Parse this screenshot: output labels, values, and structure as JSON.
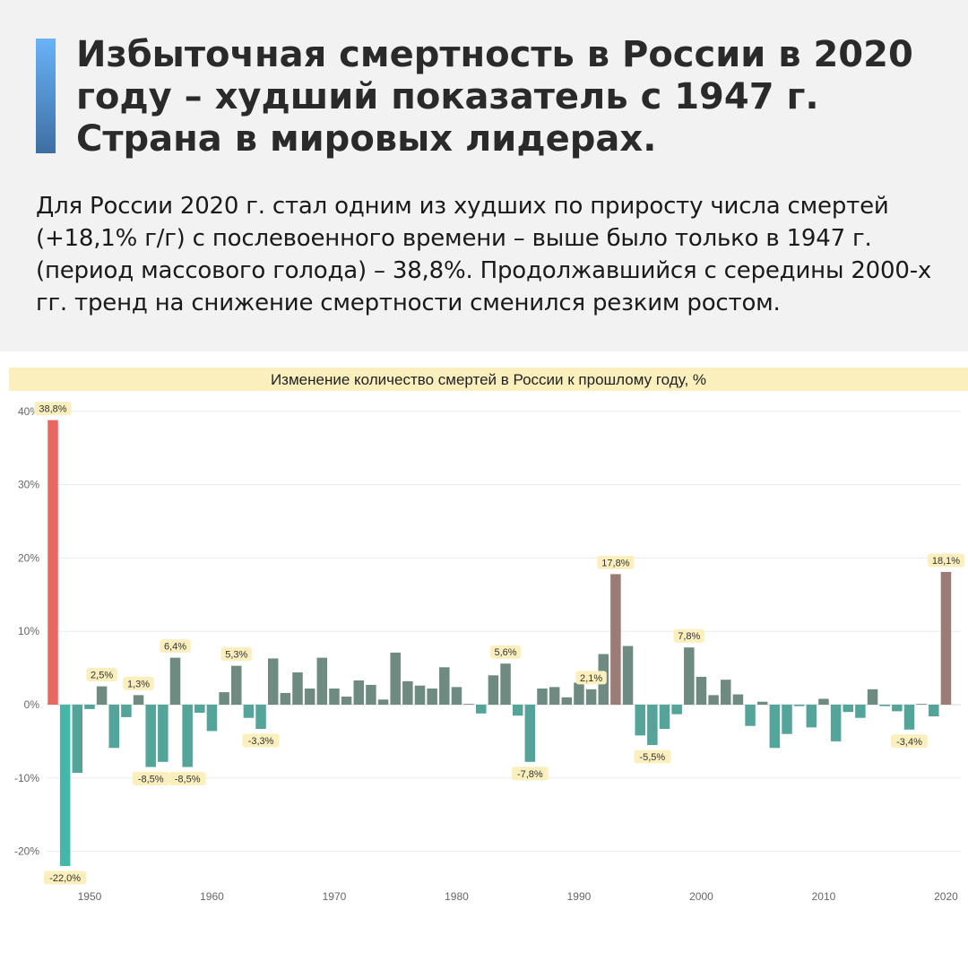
{
  "header": {
    "title": "Избыточная смертность в России в 2020 году – худший показатель с 1947 г. Страна в мировых лидерах.",
    "lead": "Для России 2020 г. стал одним из худших по приросту числа смертей (+18,1% г/г) с послевоенного времени – выше было только в 1947 г. (период массового голода) – 38,8%. Продолжавшийся с середины 2000-х гг. тренд на снижение смертности сменился резким ростом."
  },
  "colors": {
    "header_bg": "#f2f2f2",
    "accent_top": "#6ab2f7",
    "accent_bottom": "#3e6fa1",
    "banner_bg": "#fbefbe",
    "label_bg": "#fbefbe",
    "bar_max": "#e8685f",
    "bar_high": "#9b7b76",
    "bar_pos": "#6f8a80",
    "bar_neg": "#54a499",
    "bar_min": "#43b8a8"
  },
  "chart_data": {
    "type": "bar",
    "title": "Изменение количество смертей в России к прошлому году, %",
    "xlabel": "",
    "ylabel": "",
    "ylim": [
      -24,
      41
    ],
    "yticks": [
      "40%",
      "30%",
      "20%",
      "10%",
      "0%",
      "-10%",
      "-20%"
    ],
    "ytick_values": [
      40,
      30,
      20,
      10,
      0,
      -10,
      -20
    ],
    "xticks": [
      1950,
      1960,
      1970,
      1980,
      1990,
      2000,
      2010,
      2020
    ],
    "grid": true,
    "x": [
      1947,
      1948,
      1949,
      1950,
      1951,
      1952,
      1953,
      1954,
      1955,
      1956,
      1957,
      1958,
      1959,
      1960,
      1961,
      1962,
      1963,
      1964,
      1965,
      1966,
      1967,
      1968,
      1969,
      1970,
      1971,
      1972,
      1973,
      1974,
      1975,
      1976,
      1977,
      1978,
      1979,
      1980,
      1981,
      1982,
      1983,
      1984,
      1985,
      1986,
      1987,
      1988,
      1989,
      1990,
      1991,
      1992,
      1993,
      1994,
      1995,
      1996,
      1997,
      1998,
      1999,
      2000,
      2001,
      2002,
      2003,
      2004,
      2005,
      2006,
      2007,
      2008,
      2009,
      2010,
      2011,
      2012,
      2013,
      2014,
      2015,
      2016,
      2017,
      2018,
      2019,
      2020
    ],
    "values": [
      38.8,
      -22.0,
      -9.3,
      -0.6,
      2.5,
      -5.9,
      -1.7,
      1.3,
      -8.5,
      -7.8,
      6.4,
      -8.5,
      -1.1,
      -3.6,
      1.7,
      5.3,
      -1.8,
      -3.3,
      6.3,
      1.6,
      4.4,
      2.2,
      6.4,
      2.2,
      1.1,
      3.3,
      2.7,
      0.7,
      7.1,
      3.2,
      2.6,
      2.2,
      5.1,
      2.4,
      0.1,
      -1.2,
      4.0,
      5.6,
      -1.5,
      -7.8,
      2.2,
      2.4,
      1.0,
      3.0,
      2.1,
      6.9,
      17.8,
      8.0,
      -4.2,
      -5.5,
      -3.3,
      -1.3,
      7.8,
      3.8,
      1.3,
      3.4,
      1.4,
      -2.9,
      0.4,
      -5.9,
      -4.0,
      -0.2,
      -3.1,
      0.8,
      -5.0,
      -1.0,
      -1.8,
      2.1,
      -0.2,
      -0.9,
      -3.4,
      0.1,
      -1.6,
      18.1
    ],
    "data_labels": [
      {
        "year": 1947,
        "text": "38,8%"
      },
      {
        "year": 1948,
        "text": "-22,0%"
      },
      {
        "year": 1951,
        "text": "2,5%"
      },
      {
        "year": 1954,
        "text": "1,3%"
      },
      {
        "year": 1955,
        "text": "-8,5%"
      },
      {
        "year": 1957,
        "text": "6,4%"
      },
      {
        "year": 1958,
        "text": "-8,5%"
      },
      {
        "year": 1962,
        "text": "5,3%"
      },
      {
        "year": 1964,
        "text": "-3,3%"
      },
      {
        "year": 1984,
        "text": "5,6%"
      },
      {
        "year": 1986,
        "text": "-7,8%"
      },
      {
        "year": 1991,
        "text": "2,1%"
      },
      {
        "year": 1993,
        "text": "17,8%"
      },
      {
        "year": 1996,
        "text": "-5,5%"
      },
      {
        "year": 1999,
        "text": "7,8%"
      },
      {
        "year": 2017,
        "text": "-3,4%"
      },
      {
        "year": 2020,
        "text": "18,1%"
      }
    ]
  }
}
